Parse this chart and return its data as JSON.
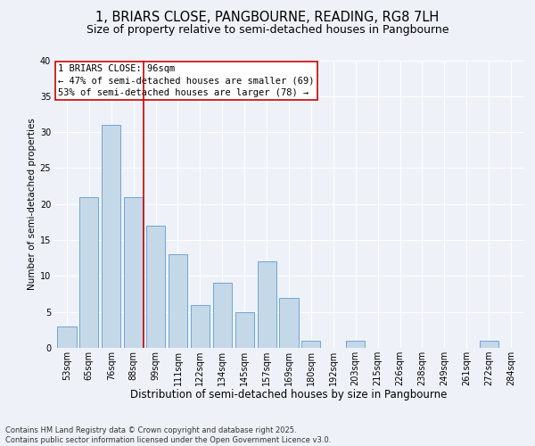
{
  "title": "1, BRIARS CLOSE, PANGBOURNE, READING, RG8 7LH",
  "subtitle": "Size of property relative to semi-detached houses in Pangbourne",
  "xlabel": "Distribution of semi-detached houses by size in Pangbourne",
  "ylabel": "Number of semi-detached properties",
  "categories": [
    "53sqm",
    "65sqm",
    "76sqm",
    "88sqm",
    "99sqm",
    "111sqm",
    "122sqm",
    "134sqm",
    "145sqm",
    "157sqm",
    "169sqm",
    "180sqm",
    "192sqm",
    "203sqm",
    "215sqm",
    "226sqm",
    "238sqm",
    "249sqm",
    "261sqm",
    "272sqm",
    "284sqm"
  ],
  "values": [
    3,
    21,
    31,
    21,
    17,
    13,
    6,
    9,
    5,
    12,
    7,
    1,
    0,
    1,
    0,
    0,
    0,
    0,
    0,
    1,
    0
  ],
  "bar_color": "#c5d8e8",
  "bar_edge_color": "#5b9bd5",
  "pct_smaller": 47,
  "n_smaller": 69,
  "pct_larger": 53,
  "n_larger": 78,
  "property_label": "1 BRIARS CLOSE: 96sqm",
  "annotation_box_color": "#ffffff",
  "annotation_box_edge": "#cc0000",
  "vline_color": "#cc0000",
  "ylim": [
    0,
    40
  ],
  "yticks": [
    0,
    5,
    10,
    15,
    20,
    25,
    30,
    35,
    40
  ],
  "background_color": "#eef2f8",
  "grid_color": "#ffffff",
  "footer_line1": "Contains HM Land Registry data © Crown copyright and database right 2025.",
  "footer_line2": "Contains public sector information licensed under the Open Government Licence v3.0.",
  "title_fontsize": 10.5,
  "subtitle_fontsize": 9,
  "xlabel_fontsize": 8.5,
  "ylabel_fontsize": 7.5,
  "tick_fontsize": 7,
  "annotation_fontsize": 7.5,
  "footer_fontsize": 6
}
